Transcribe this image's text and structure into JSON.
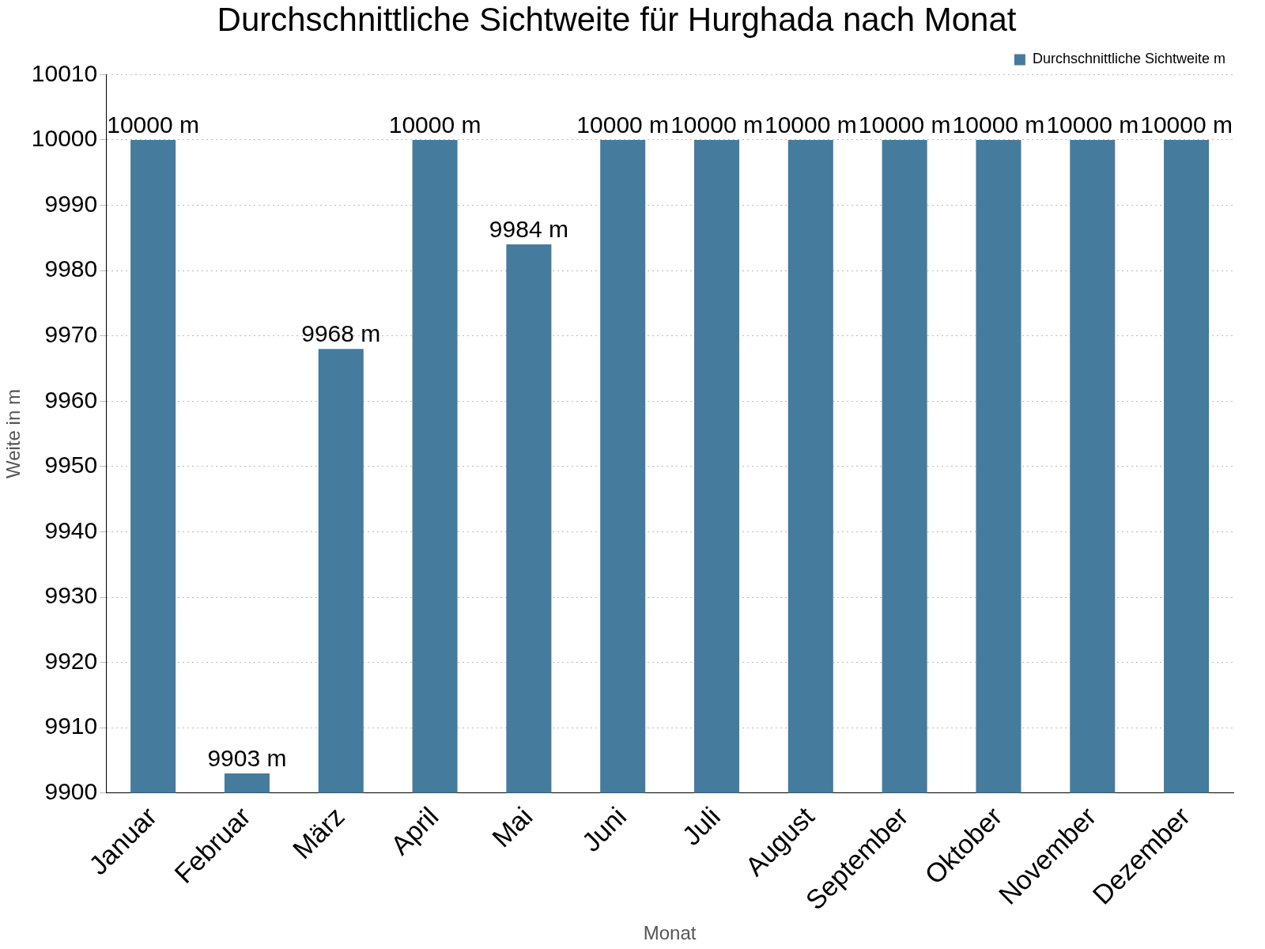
{
  "chart_data": {
    "type": "bar",
    "title": "Durchschnittliche Sichtweite für Hurghada nach Monat",
    "xlabel": "Monat",
    "ylabel": "Weite in m",
    "categories": [
      "Januar",
      "Februar",
      "März",
      "April",
      "Mai",
      "Juni",
      "Juli",
      "August",
      "September",
      "Oktober",
      "November",
      "Dezember"
    ],
    "series": [
      {
        "name": "Durchschnittliche Sichtweite m",
        "color": "#457b9d",
        "values": [
          10000,
          9903,
          9968,
          10000,
          9984,
          10000,
          10000,
          10000,
          10000,
          10000,
          10000,
          10000
        ],
        "value_labels": [
          "10000 m",
          "9903 m",
          "9968 m",
          "10000 m",
          "9984 m",
          "10000 m",
          "10000 m",
          "10000 m",
          "10000 m",
          "10000 m",
          "10000 m",
          "10000 m"
        ]
      }
    ],
    "ylim": [
      9900,
      10010
    ],
    "yticks": [
      9900,
      9910,
      9920,
      9930,
      9940,
      9950,
      9960,
      9970,
      9980,
      9990,
      10000,
      10010
    ],
    "grid": "y",
    "legend": "top right"
  }
}
